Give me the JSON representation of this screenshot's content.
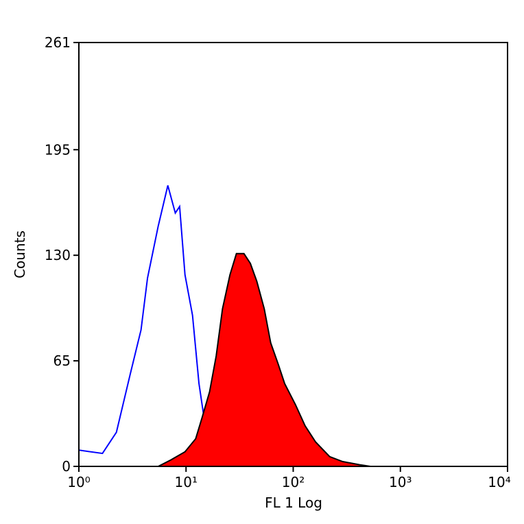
{
  "chart_data": {
    "type": "histogram-overlay",
    "xlabel": "FL 1 Log",
    "ylabel": "Counts",
    "xscale": "log",
    "xlim": [
      1,
      10000
    ],
    "xticks": [
      {
        "value": 1,
        "label": "10⁰"
      },
      {
        "value": 10,
        "label": "10¹"
      },
      {
        "value": 100,
        "label": "10²"
      },
      {
        "value": 1000,
        "label": "10³"
      },
      {
        "value": 10000,
        "label": "10⁴"
      }
    ],
    "ylim": [
      0,
      261
    ],
    "yticks": [
      0,
      65,
      130,
      195,
      261
    ],
    "series": [
      {
        "color": "#0000ff",
        "fill": false,
        "x": [
          1,
          1.66,
          2.24,
          3.02,
          3.8,
          4.37,
          5.5,
          6.76,
          7.94,
          8.71,
          9.77,
          11.5,
          13.2,
          15.1,
          17.8,
          20.4,
          27.5,
          36.3
        ],
        "values": [
          10,
          8,
          21,
          57,
          84,
          116,
          148,
          173,
          156,
          160,
          118,
          93,
          51,
          25,
          13,
          4,
          1,
          0
        ]
      },
      {
        "color": "#ff0000",
        "fill": true,
        "x": [
          5.5,
          7.24,
          9.77,
          12.3,
          14.1,
          16.6,
          19.1,
          21.9,
          25.7,
          29.5,
          34.7,
          39.8,
          45.7,
          53.7,
          61.7,
          72.4,
          83.2,
          105,
          129,
          162,
          219,
          288,
          417,
          525
        ],
        "values": [
          0,
          4,
          9,
          17,
          30,
          46,
          68,
          97,
          118,
          131,
          131,
          125,
          114,
          97,
          76,
          63,
          51,
          38,
          25,
          15,
          6,
          3,
          1,
          0
        ]
      }
    ]
  }
}
